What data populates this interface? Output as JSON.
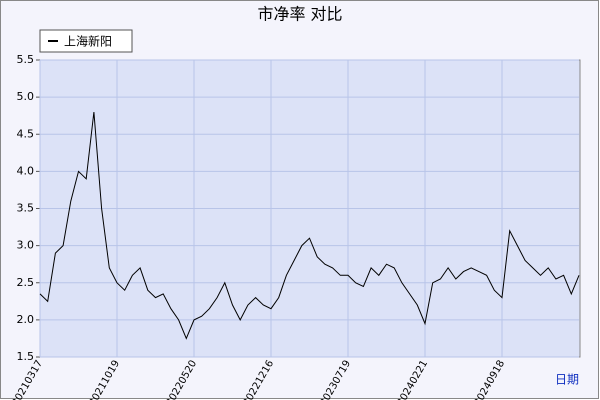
{
  "chart_data": {
    "type": "line",
    "title": "市净率  对比",
    "x_label": "日期",
    "categories": [
      "20210317",
      null,
      null,
      null,
      null,
      null,
      null,
      null,
      null,
      null,
      "20211019",
      null,
      null,
      null,
      null,
      null,
      null,
      null,
      null,
      null,
      "20220520",
      null,
      null,
      null,
      null,
      null,
      null,
      null,
      null,
      null,
      "20221216",
      null,
      null,
      null,
      null,
      null,
      null,
      null,
      null,
      null,
      "20230719",
      null,
      null,
      null,
      null,
      null,
      null,
      null,
      null,
      null,
      "20240221",
      null,
      null,
      null,
      null,
      null,
      null,
      null,
      null,
      null,
      "20240918",
      null,
      null,
      null,
      null,
      null,
      null,
      null,
      null,
      null,
      null
    ],
    "series": [
      {
        "name": "上海新阳",
        "color": "#000000",
        "values": [
          2.35,
          2.25,
          2.9,
          3.0,
          3.6,
          4.0,
          3.9,
          4.8,
          3.5,
          2.7,
          2.5,
          2.4,
          2.6,
          2.7,
          2.4,
          2.3,
          2.35,
          2.15,
          2.0,
          1.75,
          2.0,
          2.05,
          2.15,
          2.3,
          2.5,
          2.2,
          2.0,
          2.2,
          2.3,
          2.2,
          2.15,
          2.3,
          2.6,
          2.8,
          3.0,
          3.1,
          2.85,
          2.75,
          2.7,
          2.6,
          2.6,
          2.5,
          2.45,
          2.7,
          2.6,
          2.75,
          2.7,
          2.5,
          2.35,
          2.2,
          1.95,
          2.5,
          2.55,
          2.7,
          2.55,
          2.65,
          2.7,
          2.65,
          2.6,
          2.4,
          2.3,
          3.2,
          3.0,
          2.8,
          2.7,
          2.6,
          2.7,
          2.55,
          2.6,
          2.35,
          2.6
        ]
      }
    ],
    "ylim": [
      1.5,
      5.5
    ],
    "yticks": [
      1.5,
      {
        "value": 2,
        "label": "2.0"
      },
      2.5,
      {
        "value": 3,
        "label": "3.0"
      },
      3.5,
      {
        "value": 4,
        "label": "4.0"
      },
      4.5,
      {
        "value": 5,
        "label": "5.0"
      },
      5.5
    ],
    "grid": true,
    "legend": "top-left"
  }
}
